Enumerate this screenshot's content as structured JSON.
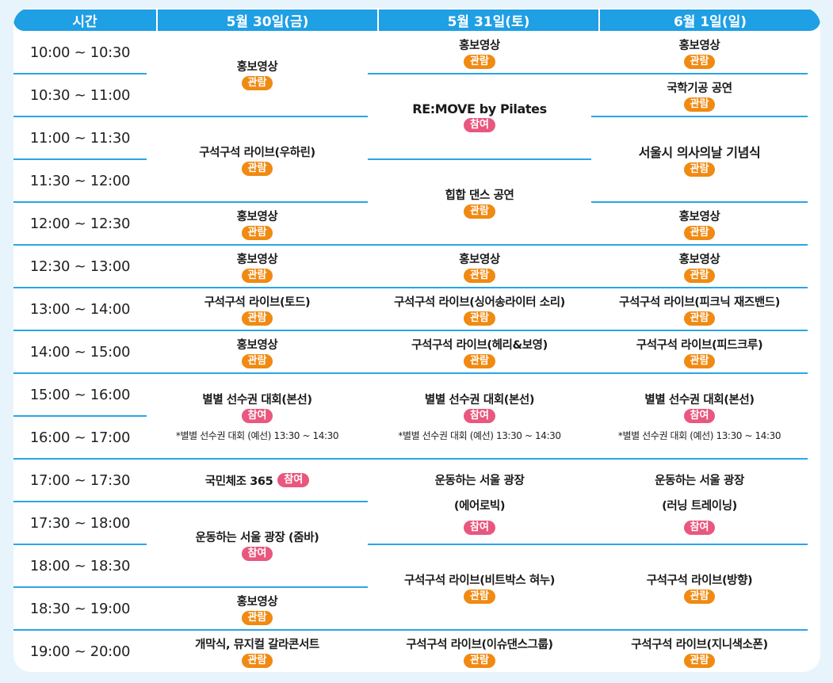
{
  "header": {
    "time": "시간",
    "days": [
      "5월 30일(금)",
      "5월 31일(토)",
      "6월 1일(일)"
    ]
  },
  "times": [
    "10:00 ~ 10:30",
    "10:30 ~ 11:00",
    "11:00 ~ 11:30",
    "11:30 ~ 12:00",
    "12:00 ~ 12:30",
    "12:30 ~ 13:00",
    "13:00 ~ 14:00",
    "14:00 ~ 15:00",
    "15:00 ~ 16:00",
    "16:00 ~ 17:00",
    "17:00 ~ 17:30",
    "17:30 ~ 18:00",
    "18:00 ~ 18:30",
    "18:30 ~ 19:00",
    "19:00 ~ 20:00"
  ],
  "badges": {
    "watch": "관람",
    "join": "참여"
  },
  "colors": {
    "header": "#1f9fe4",
    "divider": "#2aa5e8",
    "watch": "#f08a12",
    "join": "#e9577e",
    "background": "#e8f4fb"
  },
  "fri": {
    "promo_1000": "홍보영상",
    "live_woohalin": "구석구석 라이브(우하린)",
    "promo_1200": "홍보영상",
    "promo_1230": "홍보영상",
    "live_toad": "구석구석 라이브(토드)",
    "promo_1400": "홍보영상",
    "byeolbyeol": "별별 선수권 대회(본선)",
    "byeolbyeol_note": "*별별 선수권 대회 (예선) 13:30 ~ 14:30",
    "national_exercise": "국민체조 365",
    "zumba": "운동하는 서울 광장 (줌바)",
    "promo_1830": "홍보영상",
    "opening": "개막식, 뮤지컬 갈라콘서트"
  },
  "sat": {
    "promo_1000": "홍보영상",
    "remove_pilates": "RE:MOVE by Pilates",
    "hiphop": "힙합 댄스 공연",
    "promo_1230": "홍보영상",
    "live_singer": "구석구석 라이브(싱어송라이터 소리)",
    "live_henry": "구석구석 라이브(헤리&보영)",
    "byeolbyeol": "별별 선수권 대회(본선)",
    "byeolbyeol_note": "*별별 선수권 대회 (예선) 13:30 ~ 14:30",
    "aerobic_1": "운동하는 서울 광장",
    "aerobic_2": "(에어로빅)",
    "live_beatbox": "구석구석 라이브(비트박스 혀누)",
    "live_issue": "구석구석 라이브(이슈댄스그룹)"
  },
  "sun": {
    "promo_1000": "홍보영상",
    "gukhak": "국학기공 공연",
    "doctors_day": "서울시 의사의날 기념식",
    "promo_1200": "홍보영상",
    "promo_1230": "홍보영상",
    "live_picnic": "구석구석 라이브(피크닉 재즈밴드)",
    "live_pidcrew": "구석구석 라이브(피드크루)",
    "byeolbyeol": "별별 선수권 대회(본선)",
    "byeolbyeol_note": "*별별 선수권 대회 (예선) 13:30 ~ 14:30",
    "running_1": "운동하는 서울 광장",
    "running_2": "(러닝 트레이닝)",
    "live_banghyang": "구석구석 라이브(방향)",
    "live_jini": "구석구석 라이브(지니색소폰)"
  }
}
